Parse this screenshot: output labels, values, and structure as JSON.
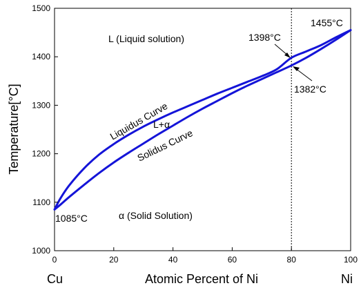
{
  "chart_data": {
    "type": "line",
    "title": "",
    "xlabel": "Atomic Percent of Ni",
    "ylabel": "Temperature[°C]",
    "x_left_label": "Cu",
    "x_right_label": "Ni",
    "xlim": [
      0,
      100
    ],
    "ylim": [
      1000,
      1500
    ],
    "x_ticks": [
      0,
      20,
      40,
      60,
      80,
      100
    ],
    "y_ticks": [
      1000,
      1100,
      1200,
      1300,
      1400,
      1500
    ],
    "grid": false,
    "series": [
      {
        "name": "Liquidus Curve",
        "x": [
          0,
          2,
          5,
          10,
          15,
          20,
          25,
          30,
          35,
          40,
          45,
          50,
          55,
          60,
          65,
          70,
          75,
          80,
          85,
          90,
          95,
          100
        ],
        "y": [
          1085,
          1108,
          1135,
          1170,
          1198,
          1220,
          1239,
          1256,
          1271,
          1285,
          1298,
          1311,
          1324,
          1336,
          1348,
          1360,
          1374,
          1398,
          1411,
          1424,
          1440,
          1455
        ]
      },
      {
        "name": "Solidus Curve",
        "x": [
          0,
          2,
          5,
          10,
          15,
          20,
          25,
          30,
          35,
          40,
          45,
          50,
          55,
          60,
          65,
          70,
          75,
          80,
          85,
          90,
          95,
          100
        ],
        "y": [
          1085,
          1095,
          1111,
          1136,
          1160,
          1182,
          1202,
          1221,
          1240,
          1258,
          1276,
          1293,
          1309,
          1325,
          1340,
          1354,
          1368,
          1382,
          1398,
          1416,
          1435,
          1455
        ]
      }
    ],
    "reference_line": {
      "x": 80,
      "style": "dashed"
    },
    "annotations": [
      {
        "text": "1455°C",
        "x": 100,
        "y": 1455
      },
      {
        "text": "1398°C",
        "x": 80,
        "y": 1398
      },
      {
        "text": "1382°C",
        "x": 80,
        "y": 1382
      },
      {
        "text": "1085°C",
        "x": 0,
        "y": 1085
      }
    ],
    "region_labels": {
      "liquid": "L (Liquid solution)",
      "two_phase": "L+α",
      "solid": "α (Solid Solution)"
    },
    "curve_labels": {
      "liquidus": "Liquidus Curve",
      "solidus": "Solidus Curve"
    },
    "colors": {
      "curve": "#1414d8",
      "axis": "#000000"
    }
  }
}
